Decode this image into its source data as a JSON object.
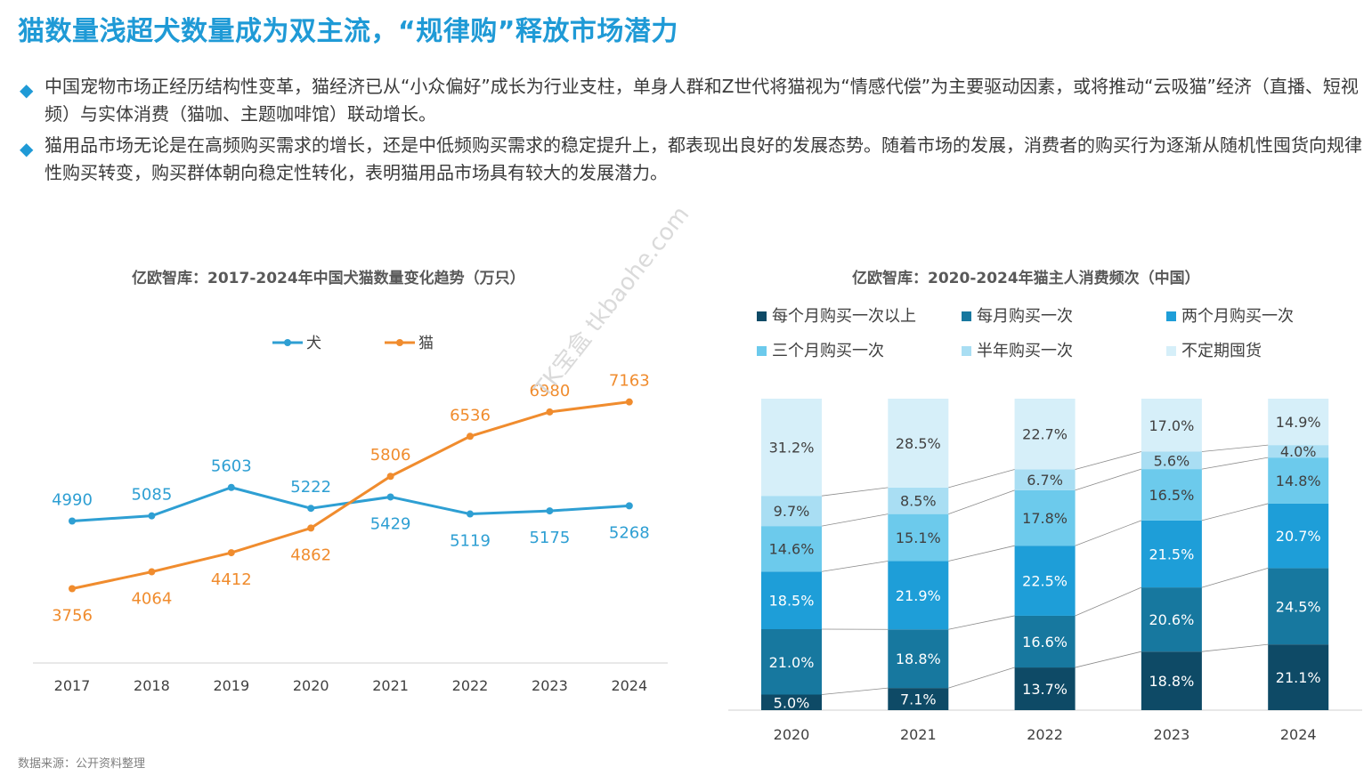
{
  "title": "猫数量浅超犬数量成为双主流，“规律购”释放市场潜力",
  "bullets": [
    "中国宠物市场正经历结构性变革，猫经济已从“小众偏好”成长为行业支柱，单身人群和Z世代将猫视为“情感代偿”为主要驱动因素，或将推动“云吸猫”经济（直播、短视频）与实体消费（猫咖、主题咖啡馆）联动增长。",
    "猫用品市场无论是在高频购买需求的增长，还是中低频购买需求的稳定提升上，都表现出良好的发展态势。随着市场的发展，消费者的购买行为逐渐从随机性囤货向规律性购买转变，购买群体朝向稳定性转化，表明猫用品市场具有较大的发展潜力。"
  ],
  "watermark": "TK宝盒 tkbaohe.com",
  "source": "数据来源：公开资料整理",
  "chart_data": [
    {
      "type": "line",
      "title": "亿欧智库：2017-2024年中国犬猫数量变化趋势（万只）",
      "x": [
        "2017",
        "2018",
        "2019",
        "2020",
        "2021",
        "2022",
        "2023",
        "2024"
      ],
      "series": [
        {
          "name": "犬",
          "color": "#2e9fd3",
          "values": [
            4990,
            5085,
            5603,
            5222,
            5429,
            5119,
            5175,
            5268
          ]
        },
        {
          "name": "猫",
          "color": "#f08c2e",
          "values": [
            3756,
            4064,
            4412,
            4862,
            5806,
            6536,
            6980,
            7163
          ]
        }
      ],
      "legend": "top",
      "grid": false
    },
    {
      "type": "bar",
      "stacked": true,
      "title": "亿欧智库：2020-2024年猫主人消费频次（中国）",
      "categories": [
        "2020",
        "2021",
        "2022",
        "2023",
        "2024"
      ],
      "series": [
        {
          "name": "每个月购买一次以上",
          "color": "#0e4a66",
          "values": [
            5.0,
            7.1,
            13.7,
            18.8,
            21.1
          ]
        },
        {
          "name": "每月购买一次",
          "color": "#17789f",
          "values": [
            21.0,
            18.8,
            16.6,
            20.6,
            24.5
          ]
        },
        {
          "name": "两个月购买一次",
          "color": "#1e9ed8",
          "values": [
            18.5,
            21.9,
            22.5,
            21.5,
            20.7
          ]
        },
        {
          "name": "三个月购买一次",
          "color": "#6ccaec",
          "values": [
            14.6,
            15.1,
            17.8,
            16.5,
            14.8
          ]
        },
        {
          "name": "半年购买一次",
          "color": "#a9def3",
          "values": [
            9.7,
            8.5,
            6.7,
            5.6,
            4.0
          ]
        },
        {
          "name": "不定期囤货",
          "color": "#d6eff9",
          "values": [
            31.2,
            28.5,
            22.7,
            17.0,
            14.9
          ]
        }
      ],
      "unit": "%",
      "legend": "top"
    }
  ]
}
